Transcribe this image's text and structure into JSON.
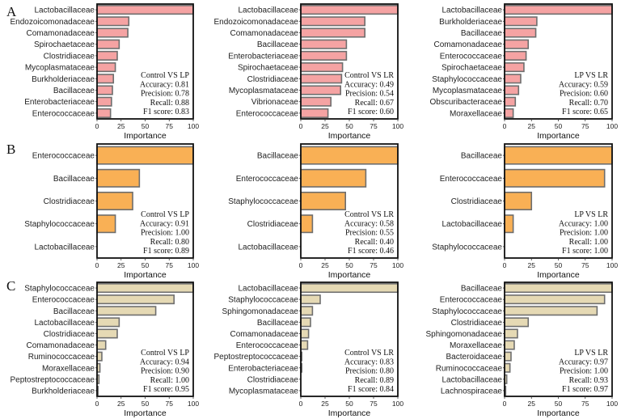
{
  "panel_labels": [
    "A",
    "B",
    "C"
  ],
  "colors": {
    "A": {
      "fill": "#f5a3a3",
      "stroke": "#6e6e6e"
    },
    "B": {
      "fill": "#f9b055",
      "stroke": "#6e6e6e"
    },
    "C": {
      "fill": "#e5d9b4",
      "stroke": "#6e6e6e"
    }
  },
  "chart_data": [
    {
      "type": "bar",
      "orientation": "horizontal",
      "row": "A",
      "comparison": "Control VS LP",
      "categories": [
        "Lactobacillaceae",
        "Endozoicomonadaceae",
        "Comamonadaceae",
        "Spirochaetaceae",
        "Clostridiaceae",
        "Mycoplasmataceae",
        "Burkholderiaceae",
        "Bacillaceae",
        "Enterobacteriaceae",
        "Enterococcaceae"
      ],
      "values": [
        100,
        33,
        32,
        23,
        21,
        19,
        17,
        16,
        15,
        14
      ],
      "xlabel": "Importance",
      "xlim": [
        0,
        100
      ],
      "xticks": [
        0,
        25,
        50,
        75,
        100
      ],
      "metrics": [
        "Accuracy: 0.81",
        "Precision: 0.78",
        "Recall: 0.88",
        "F1 score: 0.83"
      ]
    },
    {
      "type": "bar",
      "orientation": "horizontal",
      "row": "A",
      "comparison": "Control VS LR",
      "categories": [
        "Lactobacillaceae",
        "Endozoicomonadaceae",
        "Comamonadaceae",
        "Bacillaceae",
        "Enterobacteriaceae",
        "Spirochaetaceae",
        "Clostridiaceae",
        "Mycoplasmataceae",
        "Vibrionaceae",
        "Enterococcaceae"
      ],
      "values": [
        100,
        66,
        66,
        47,
        47,
        43,
        42,
        41,
        31,
        28
      ],
      "xlabel": "Importance",
      "xlim": [
        0,
        100
      ],
      "xticks": [
        0,
        25,
        50,
        75,
        100
      ],
      "metrics": [
        "Accuracy: 0.49",
        "Precision: 0.54",
        "Recall: 0.67",
        "F1 score: 0.60"
      ]
    },
    {
      "type": "bar",
      "orientation": "horizontal",
      "row": "A",
      "comparison": "LP VS LR",
      "categories": [
        "Lactobacillaceae",
        "Burkholderiaceae",
        "Bacillaceae",
        "Comamonadaceae",
        "Enterococcaceae",
        "Spirochaetaceae",
        "Staphylococcaceae",
        "Mycoplasmataceae",
        "Obscuribacteraceae",
        "Moraxellaceae"
      ],
      "values": [
        100,
        30,
        29,
        22,
        20,
        18,
        15,
        13,
        10,
        8
      ],
      "xlabel": "Importance",
      "xlim": [
        0,
        100
      ],
      "xticks": [
        0,
        25,
        50,
        75,
        100
      ],
      "metrics": [
        "Accuracy: 0.59",
        "Precision: 0.60",
        "Recall: 0.70",
        "F1 score: 0.65"
      ]
    },
    {
      "type": "bar",
      "orientation": "horizontal",
      "row": "B",
      "comparison": "Control VS LP",
      "categories": [
        "Enterococcaceae",
        "Bacillaceae",
        "Clostridiaceae",
        "Staphylococcaceae",
        "Lactobacillaceae"
      ],
      "values": [
        100,
        44,
        37,
        19,
        0
      ],
      "xlabel": "Importance",
      "xlim": [
        0,
        100
      ],
      "xticks": [
        0,
        25,
        50,
        75,
        100
      ],
      "metrics": [
        "Accuracy: 0.91",
        "Precision: 1.00",
        "Recall: 0.80",
        "F1 score: 0.89"
      ]
    },
    {
      "type": "bar",
      "orientation": "horizontal",
      "row": "B",
      "comparison": "Control VS LR",
      "categories": [
        "Bacillaceae",
        "Enterococcaceae",
        "Staphylococcaceae",
        "Clostridiaceae",
        "Lactobacillaceae"
      ],
      "values": [
        100,
        67,
        46,
        12,
        0
      ],
      "xlabel": "Importance",
      "xlim": [
        0,
        100
      ],
      "xticks": [
        0,
        25,
        50,
        75,
        100
      ],
      "metrics": [
        "Accuracy: 0.58",
        "Precision: 0.55",
        "Recall: 0.40",
        "F1 score: 0.46"
      ]
    },
    {
      "type": "bar",
      "orientation": "horizontal",
      "row": "B",
      "comparison": "LP VS LR",
      "categories": [
        "Bacillaceae",
        "Enterococcaceae",
        "Clostridiaceae",
        "Lactobacillaceae",
        "Staphylococcaceae"
      ],
      "values": [
        100,
        93,
        25,
        8,
        0
      ],
      "xlabel": "Importance",
      "xlim": [
        0,
        100
      ],
      "xticks": [
        0,
        25,
        50,
        75,
        100
      ],
      "metrics": [
        "Accuracy: 1.00",
        "Precision: 1.00",
        "Recall: 1.00",
        "F1 score: 1.00"
      ]
    },
    {
      "type": "bar",
      "orientation": "horizontal",
      "row": "C",
      "comparison": "Control VS LP",
      "categories": [
        "Staphylococcaceae",
        "Enterococcaceae",
        "Bacillaceae",
        "Lactobacillaceae",
        "Clostridiaceae",
        "Comamonadaceae",
        "Ruminococcaceae",
        "Moraxellaceae",
        "Peptostreptococcaceae",
        "Burkholderiaceae"
      ],
      "values": [
        100,
        80,
        61,
        23,
        21,
        9,
        5,
        3,
        2,
        1
      ],
      "xlabel": "Importance",
      "xlim": [
        0,
        100
      ],
      "xticks": [
        0,
        25,
        50,
        75,
        100
      ],
      "metrics": [
        "Accuracy: 0.94",
        "Precision: 0.90",
        "Recall: 1.00",
        "F1 score: 0.95"
      ]
    },
    {
      "type": "bar",
      "orientation": "horizontal",
      "row": "C",
      "comparison": "Control VS LR",
      "categories": [
        "Lactobacillaceae",
        "Staphylococcaceae",
        "Sphingomonadaceae",
        "Bacillaceae",
        "Comamonadaceae",
        "Enterococcaceae",
        "Peptostreptococcaceae",
        "Enterobacteriaceae",
        "Clostridiaceae",
        "Mycoplasmataceae"
      ],
      "values": [
        100,
        20,
        12,
        10,
        8,
        7,
        1,
        1,
        0,
        0
      ],
      "xlabel": "Importance",
      "xlim": [
        0,
        100
      ],
      "xticks": [
        0,
        25,
        50,
        75,
        100
      ],
      "metrics": [
        "Accuracy: 0.83",
        "Precision: 0.80",
        "Recall: 0.89",
        "F1 score: 0.84"
      ]
    },
    {
      "type": "bar",
      "orientation": "horizontal",
      "row": "C",
      "comparison": "LP VS LR",
      "categories": [
        "Bacillaceae",
        "Enterococcaceae",
        "Staphylococcaceae",
        "Clostridiaceae",
        "Sphingomonadaceae",
        "Moraxellaceae",
        "Bacteroidaceae",
        "Ruminococcaceae",
        "Lactobacillaceae",
        "Lachnospiraceae"
      ],
      "values": [
        100,
        93,
        86,
        22,
        12,
        9,
        6,
        5,
        2,
        1
      ],
      "xlabel": "Importance",
      "xlim": [
        0,
        100
      ],
      "xticks": [
        0,
        25,
        50,
        75,
        100
      ],
      "metrics": [
        "Accuracy: 0.97",
        "Precision: 1.00",
        "Recall: 0.93",
        "F1 score: 0.97"
      ]
    }
  ]
}
